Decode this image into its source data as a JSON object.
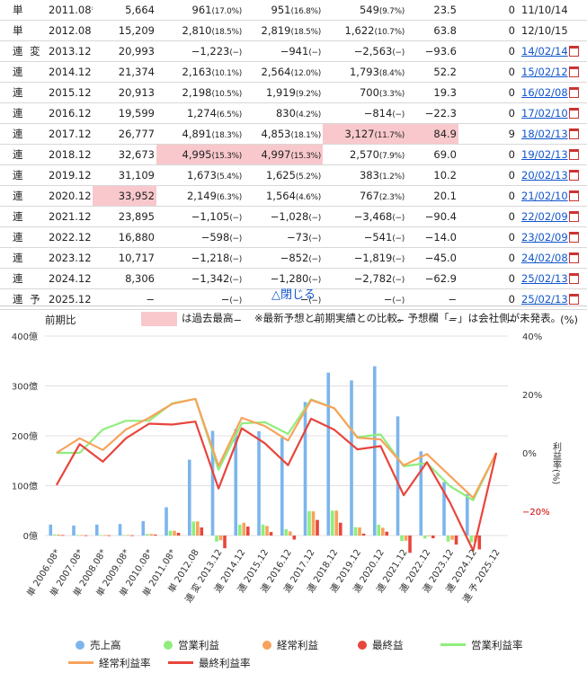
{
  "table": {
    "rows": [
      {
        "kind": "単",
        "period": "2011.08*",
        "sales": "5,664",
        "op": "961",
        "op_pct": "(17.0%)",
        "ord": "951",
        "ord_pct": "(16.8%)",
        "net": "549",
        "net_pct": "(9.7%)",
        "eps": "23.5",
        "div": "0",
        "date": "11/10/14",
        "link": false,
        "pdf": false
      },
      {
        "kind": "単",
        "period": "2012.08",
        "sales": "15,209",
        "op": "2,810",
        "op_pct": "(18.5%)",
        "ord": "2,819",
        "ord_pct": "(18.5%)",
        "net": "1,622",
        "net_pct": "(10.7%)",
        "eps": "63.8",
        "div": "0",
        "date": "12/10/15",
        "link": false,
        "pdf": false
      },
      {
        "kind": "連 変",
        "period": "2013.12",
        "sales": "20,993",
        "op": "−1,223",
        "op_pct": "(−)",
        "ord": "−941",
        "ord_pct": "(−)",
        "net": "−2,563",
        "net_pct": "(−)",
        "eps": "−93.6",
        "div": "0",
        "date": "14/02/14",
        "link": true,
        "pdf": true
      },
      {
        "kind": "連",
        "period": "2014.12",
        "sales": "21,374",
        "op": "2,163",
        "op_pct": "(10.1%)",
        "ord": "2,564",
        "ord_pct": "(12.0%)",
        "net": "1,793",
        "net_pct": "(8.4%)",
        "eps": "52.2",
        "div": "0",
        "date": "15/02/12",
        "link": true,
        "pdf": true
      },
      {
        "kind": "連",
        "period": "2015.12",
        "sales": "20,913",
        "op": "2,198",
        "op_pct": "(10.5%)",
        "ord": "1,919",
        "ord_pct": "(9.2%)",
        "net": "700",
        "net_pct": "(3.3%)",
        "eps": "19.3",
        "div": "0",
        "date": "16/02/08",
        "link": true,
        "pdf": true
      },
      {
        "kind": "連",
        "period": "2016.12",
        "sales": "19,599",
        "op": "1,274",
        "op_pct": "(6.5%)",
        "ord": "830",
        "ord_pct": "(4.2%)",
        "net": "−814",
        "net_pct": "(−)",
        "eps": "−22.3",
        "div": "0",
        "date": "17/02/10",
        "link": true,
        "pdf": true
      },
      {
        "kind": "連",
        "period": "2017.12",
        "sales": "26,777",
        "op": "4,891",
        "op_pct": "(18.3%)",
        "ord": "4,853",
        "ord_pct": "(18.1%)",
        "net": "3,127",
        "net_pct": "(11.7%)",
        "eps": "84.9",
        "div": "9",
        "date": "18/02/13",
        "link": true,
        "pdf": true
      },
      {
        "kind": "連",
        "period": "2018.12",
        "sales": "32,673",
        "op": "4,995",
        "op_pct": "(15.3%)",
        "ord": "4,997",
        "ord_pct": "(15.3%)",
        "net": "2,570",
        "net_pct": "(7.9%)",
        "eps": "69.0",
        "div": "0",
        "date": "19/02/13",
        "link": true,
        "pdf": true
      },
      {
        "kind": "連",
        "period": "2019.12",
        "sales": "31,109",
        "op": "1,673",
        "op_pct": "(5.4%)",
        "ord": "1,625",
        "ord_pct": "(5.2%)",
        "net": "383",
        "net_pct": "(1.2%)",
        "eps": "10.2",
        "div": "0",
        "date": "20/02/13",
        "link": true,
        "pdf": true
      },
      {
        "kind": "連",
        "period": "2020.12",
        "sales": "33,952",
        "op": "2,149",
        "op_pct": "(6.3%)",
        "ord": "1,564",
        "ord_pct": "(4.6%)",
        "net": "767",
        "net_pct": "(2.3%)",
        "eps": "20.1",
        "div": "0",
        "date": "21/02/10",
        "link": true,
        "pdf": true
      },
      {
        "kind": "連",
        "period": "2021.12",
        "sales": "23,895",
        "op": "−1,105",
        "op_pct": "(−)",
        "ord": "−1,028",
        "ord_pct": "(−)",
        "net": "−3,468",
        "net_pct": "(−)",
        "eps": "−90.4",
        "div": "0",
        "date": "22/02/09",
        "link": true,
        "pdf": true
      },
      {
        "kind": "連",
        "period": "2022.12",
        "sales": "16,880",
        "op": "−598",
        "op_pct": "(−)",
        "ord": "−73",
        "ord_pct": "(−)",
        "net": "−541",
        "net_pct": "(−)",
        "eps": "−14.0",
        "div": "0",
        "date": "23/02/09",
        "link": true,
        "pdf": true
      },
      {
        "kind": "連",
        "period": "2023.12",
        "sales": "10,717",
        "op": "−1,218",
        "op_pct": "(−)",
        "ord": "−852",
        "ord_pct": "(−)",
        "net": "−1,819",
        "net_pct": "(−)",
        "eps": "−45.0",
        "div": "0",
        "date": "24/02/08",
        "link": true,
        "pdf": true
      },
      {
        "kind": "連",
        "period": "2024.12",
        "sales": "8,306",
        "op": "−1,342",
        "op_pct": "(−)",
        "ord": "−1,280",
        "ord_pct": "(−)",
        "net": "−2,782",
        "net_pct": "(−)",
        "eps": "−62.9",
        "div": "0",
        "date": "25/02/13",
        "link": true,
        "pdf": true
      },
      {
        "kind": "連 予",
        "period": "2025.12",
        "sales": "−",
        "op": "−",
        "op_pct": "(−)",
        "ord": "−",
        "ord_pct": "(−)",
        "net": "−",
        "net_pct": "(−)",
        "eps": "−",
        "div": "0",
        "date": "25/02/13",
        "link": true,
        "pdf": true
      }
    ],
    "compare": {
      "label": "前期比",
      "sales": "−",
      "op": "−",
      "ord": "−",
      "net": "−",
      "eps": "−",
      "div": "−",
      "unit": "(%)"
    }
  },
  "toggle_label": "△閉じる",
  "legend_highlight_text": "は過去最高",
  "note": "※最新予想と前期実績との比較。予想欄「−」は会社側が未発表。",
  "highlight_color": "#f8c8cc",
  "colors": {
    "sales": "#7cb5ec",
    "op": "#90ed7d",
    "ord": "#f7a35c",
    "net": "#e8453c",
    "op_rate": "#90ed7d",
    "ord_rate": "#f7a35c",
    "net_rate": "#e8453c",
    "link": "#1155cc",
    "neg": "#cc0000"
  },
  "chart_data": {
    "type": "bar",
    "categories": [
      "単 2006.08*",
      "単 2007.08*",
      "単 2008.08*",
      "単 2009.08*",
      "単 2010.08*",
      "単 2011.08*",
      "単 2012.08",
      "連 変 2013.12",
      "連 2014.12",
      "連 2015.12",
      "連 2016.12",
      "連 2017.12",
      "連 2018.12",
      "連 2019.12",
      "連 2020.12",
      "連 2021.12",
      "連 2022.12",
      "連 2023.12",
      "連 2024.12",
      "連 予 2025.12"
    ],
    "left_ticks": [
      "400億",
      "300億",
      "200億",
      "100億",
      "0億"
    ],
    "right_ticks": [
      "40%",
      "20%",
      "0%",
      "−20%"
    ],
    "ylabel_left": "",
    "ylabel_right": "利益率(%)",
    "ylim_left": [
      -25,
      400
    ],
    "ylim_right": [
      -35,
      40
    ],
    "series": [
      {
        "name": "売上高",
        "kind": "bar",
        "values": [
          2.2,
          2.0,
          2.2,
          2.3,
          2.9,
          5.664,
          15.209,
          20.993,
          21.374,
          20.913,
          19.599,
          26.777,
          32.673,
          31.109,
          33.952,
          23.895,
          16.88,
          10.717,
          8.306,
          null
        ]
      },
      {
        "name": "営業利益",
        "kind": "bar",
        "values": [
          0.2,
          0.1,
          0.1,
          0.1,
          0.3,
          0.961,
          2.81,
          -1.223,
          2.163,
          2.198,
          1.274,
          4.891,
          4.995,
          1.673,
          2.149,
          -1.105,
          -0.598,
          -1.218,
          -1.342,
          null
        ]
      },
      {
        "name": "経常利益",
        "kind": "bar",
        "values": [
          0.2,
          0.1,
          0.1,
          0.1,
          0.3,
          0.951,
          2.819,
          -0.941,
          2.564,
          1.919,
          0.83,
          4.853,
          4.997,
          1.625,
          1.564,
          -1.028,
          -0.073,
          -0.852,
          -1.28,
          null
        ]
      },
      {
        "name": "最終益",
        "kind": "bar",
        "values": [
          0.1,
          0.05,
          0.05,
          0.05,
          0.2,
          0.549,
          1.622,
          -2.563,
          1.793,
          0.7,
          -0.814,
          3.127,
          2.57,
          0.383,
          0.767,
          -3.468,
          -0.541,
          -1.819,
          -2.782,
          null
        ]
      },
      {
        "name": "営業利益率",
        "kind": "line",
        "values": [
          0,
          0,
          8,
          11,
          11,
          17.0,
          18.5,
          -5.8,
          10.1,
          10.5,
          6.5,
          18.3,
          15.3,
          5.4,
          6.3,
          -4.6,
          -3.5,
          -11.4,
          -16.2,
          0
        ]
      },
      {
        "name": "経常利益率",
        "kind": "line",
        "values": [
          0,
          5,
          1,
          8,
          12,
          16.8,
          18.5,
          -4.5,
          12.0,
          9.2,
          4.2,
          18.1,
          15.3,
          5.2,
          4.6,
          -4.3,
          -0.4,
          -7.9,
          -15.4,
          0
        ]
      },
      {
        "name": "最終利益率",
        "kind": "line",
        "values": [
          -11,
          3,
          -3,
          5,
          10,
          9.7,
          10.7,
          -12.2,
          8.4,
          3.3,
          -4.2,
          11.7,
          7.9,
          1.2,
          2.3,
          -14.5,
          -3.2,
          -17.0,
          -33.5,
          0
        ]
      }
    ],
    "legend": [
      {
        "name": "売上高",
        "marker": "dot",
        "color": "#7cb5ec"
      },
      {
        "name": "営業利益",
        "marker": "dot",
        "color": "#90ed7d"
      },
      {
        "name": "経常利益",
        "marker": "dot",
        "color": "#f7a35c"
      },
      {
        "name": "最終益",
        "marker": "dot",
        "color": "#e8453c"
      },
      {
        "name": "営業利益率",
        "marker": "line",
        "color": "#90ed7d"
      },
      {
        "name": "経常利益率",
        "marker": "line",
        "color": "#f7a35c"
      },
      {
        "name": "最終利益率",
        "marker": "line",
        "color": "#e8453c"
      }
    ],
    "legend_placement": "bottom",
    "grid": true
  }
}
